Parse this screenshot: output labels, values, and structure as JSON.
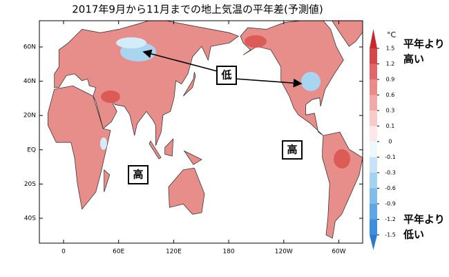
{
  "title": "2017年9月から11月までの地上気温の平年差(予測値)",
  "map": {
    "lat_ticks": [
      "60N",
      "40N",
      "20N",
      "EQ",
      "20S",
      "40S"
    ],
    "lon_ticks": [
      "0",
      "60E",
      "120E",
      "180",
      "120W",
      "60W"
    ]
  },
  "colorbar": {
    "unit": "°C",
    "ticks": [
      1.5,
      1.2,
      0.9,
      0.6,
      0.3,
      0.1,
      0,
      -0.1,
      -0.3,
      -0.6,
      -0.9,
      -1.2,
      -1.5
    ],
    "colors": [
      "#c8282d",
      "#d9464a",
      "#e3676a",
      "#ec8a8a",
      "#f2aaa9",
      "#f7cbca",
      "#fce8e8",
      "#eef7fc",
      "#c6e4f6",
      "#a4d2f1",
      "#80bdeb",
      "#5ea6e5",
      "#3f8fdd",
      "#2a7ad4"
    ],
    "upper_label": [
      "平年より",
      "高い"
    ],
    "lower_label": [
      "平年より",
      "低い"
    ]
  },
  "annotations": [
    {
      "text": "低",
      "color": "#1e6fd9"
    },
    {
      "text": "高",
      "color": "#e0201b"
    },
    {
      "text": "高",
      "color": "#e0201b"
    }
  ]
}
